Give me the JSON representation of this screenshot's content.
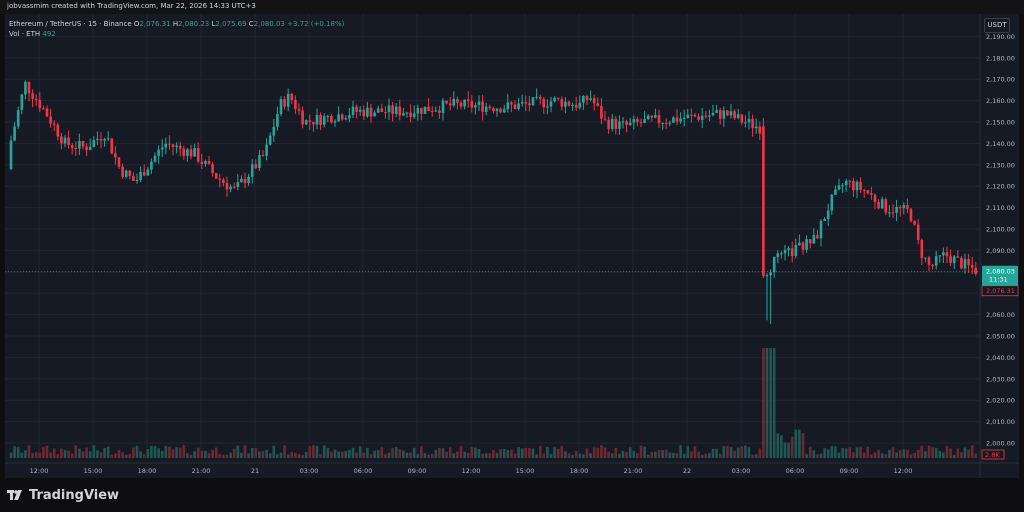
{
  "header": {
    "attribution": "jobvassmim created with TradingView.com, Mar 22, 2026 14:33 UTC+3"
  },
  "legend": {
    "symbol": "Ethereum / TetherUS · 15 · Binance",
    "o_label": "O",
    "o": "2,076.31",
    "h_label": "H",
    "h": "2,080.23",
    "l_label": "L",
    "l": "2,075.69",
    "c_label": "C",
    "c": "2,080.03",
    "change": "+3.72 (+0.18%)",
    "vol_label": "Vol · ETH",
    "vol": "492"
  },
  "currency_button": "USDT",
  "price_axis": {
    "ticks": [
      "2,190.00",
      "2,180.00",
      "2,170.00",
      "2,160.00",
      "2,150.00",
      "2,140.00",
      "2,130.00",
      "2,120.00",
      "2,110.00",
      "2,100.00",
      "2,090.00",
      "2,080.00",
      "2,070.00",
      "2,060.00",
      "2,050.00",
      "2,040.00",
      "2,030.00",
      "2,020.00",
      "2,010.00",
      "2,000.00"
    ],
    "last_price": "2,080.03",
    "countdown": "11:31",
    "open_price": "2,076.31",
    "volume_badge": "2.8K"
  },
  "time_axis": {
    "labels": [
      "12:00",
      "15:00",
      "18:00",
      "21:00",
      "21",
      "03:00",
      "06:00",
      "09:00",
      "12:00",
      "15:00",
      "18:00",
      "21:00",
      "22",
      "03:00",
      "06:00",
      "09:00",
      "12:00"
    ]
  },
  "colors": {
    "up": "#26a69a",
    "down": "#f23645",
    "background": "#161a25",
    "grid": "#232632"
  },
  "brand": {
    "name": "TradingView",
    "icon": "tradingview-logo-icon"
  }
}
